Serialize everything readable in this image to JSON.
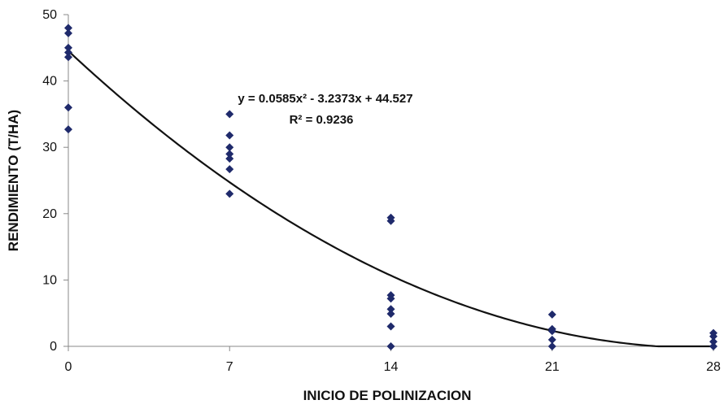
{
  "chart_data": {
    "type": "scatter",
    "title": "",
    "xlabel": "INICIO DE POLINIZACION",
    "ylabel": "RENDIMIENTO (T/HA)",
    "xlim": [
      0,
      28
    ],
    "ylim": [
      0,
      50
    ],
    "xticks": [
      0,
      7,
      14,
      21,
      28
    ],
    "xtick_labels": [
      "0",
      "7",
      "14",
      "21",
      "28"
    ],
    "yticks": [
      0,
      10,
      20,
      30,
      40,
      50
    ],
    "ytick_labels": [
      "0",
      "10",
      "20",
      "30",
      "40",
      "50"
    ],
    "grid": false,
    "legend": "none",
    "marker_color": "#1f2a6b",
    "series": [
      {
        "points": [
          [
            0,
            48
          ],
          [
            0,
            47.2
          ],
          [
            0,
            45
          ],
          [
            0,
            44.3
          ],
          [
            0,
            43.6
          ],
          [
            0,
            36
          ],
          [
            0,
            32.7
          ],
          [
            7,
            35
          ],
          [
            7,
            31.8
          ],
          [
            7,
            30
          ],
          [
            7,
            29
          ],
          [
            7,
            28.3
          ],
          [
            7,
            26.7
          ],
          [
            7,
            23
          ],
          [
            14,
            19.4
          ],
          [
            14,
            18.9
          ],
          [
            14,
            7.7
          ],
          [
            14,
            7.2
          ],
          [
            14,
            5.6
          ],
          [
            14,
            4.9
          ],
          [
            14,
            3
          ],
          [
            14,
            0
          ],
          [
            21,
            4.8
          ],
          [
            21,
            2.6
          ],
          [
            21,
            2.3
          ],
          [
            21,
            1
          ],
          [
            21,
            0
          ],
          [
            28,
            2
          ],
          [
            28,
            1.5
          ],
          [
            28,
            0.7
          ],
          [
            28,
            0
          ]
        ]
      }
    ],
    "trendline": {
      "type": "polynomial",
      "a": 0.0585,
      "b": -3.2373,
      "c": 44.527,
      "color": "#111111"
    },
    "annotations": {
      "equation": "y = 0.0585x² - 3.2373x + 44.527",
      "r_squared": "R² = 0.9236"
    }
  }
}
